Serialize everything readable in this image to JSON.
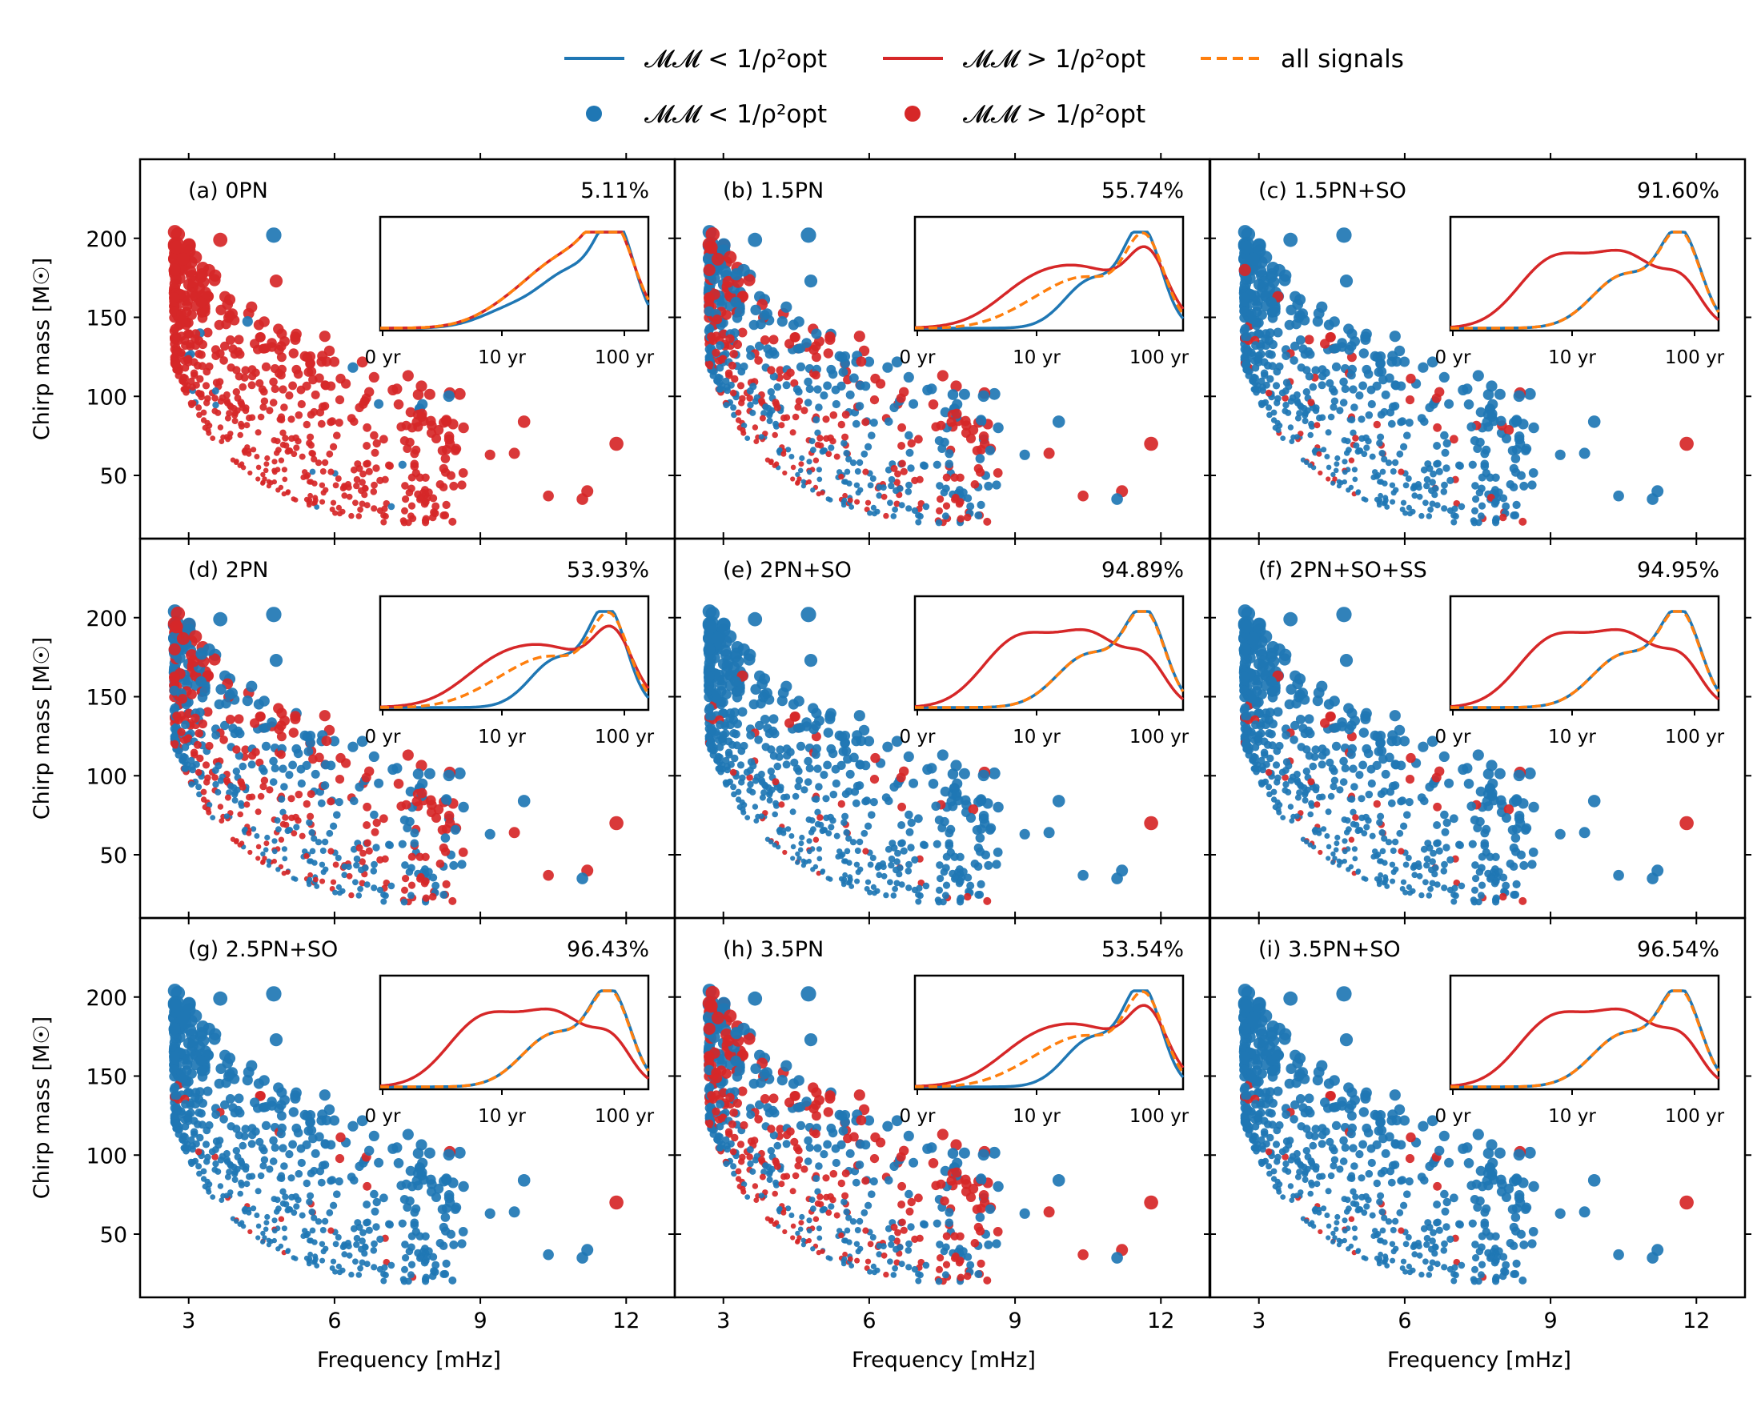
{
  "colors": {
    "blue": "#1f77b4",
    "red": "#d62728",
    "orange": "#ff7f0e",
    "axis": "#000000"
  },
  "legend": {
    "lines": [
      {
        "name": "below",
        "color": "#1f77b4",
        "style": "solid",
        "label": "𝓜𝓜 < 1/ρ²opt"
      },
      {
        "name": "above",
        "color": "#d62728",
        "style": "solid",
        "label": "𝓜𝓜 > 1/ρ²opt"
      },
      {
        "name": "all",
        "color": "#ff7f0e",
        "style": "dashed",
        "label": "all signals"
      }
    ],
    "markers": [
      {
        "name": "below",
        "color": "#1f77b4",
        "label": "𝓜𝓜 < 1/ρ²opt"
      },
      {
        "name": "above",
        "color": "#d62728",
        "label": "𝓜𝓜 > 1/ρ²opt"
      }
    ]
  },
  "chart_data": {
    "type": "scatter",
    "xlabel": "Frequency [mHz]",
    "ylabel": "Chirp mass [M☉]",
    "xlim": [
      2.0,
      13.0
    ],
    "ylim": [
      10,
      250
    ],
    "xticks": [
      3,
      6,
      9,
      12
    ],
    "yticks": [
      50,
      100,
      150,
      200
    ],
    "inset": {
      "xticks": [
        "0 yr",
        "10 yr",
        "100 yr"
      ]
    },
    "panels": [
      {
        "label": "(a) 0PN",
        "percent": "5.11%",
        "blue_fraction": 0.02,
        "curves": "a"
      },
      {
        "label": "(b) 1.5PN",
        "percent": "55.74%",
        "blue_fraction": 0.56,
        "curves": "b"
      },
      {
        "label": "(c) 1.5PN+SO",
        "percent": "91.60%",
        "blue_fraction": 0.9,
        "curves": "c"
      },
      {
        "label": "(d) 2PN",
        "percent": "53.93%",
        "blue_fraction": 0.54,
        "curves": "b"
      },
      {
        "label": "(e) 2PN+SO",
        "percent": "94.89%",
        "blue_fraction": 0.93,
        "curves": "c"
      },
      {
        "label": "(f) 2PN+SO+SS",
        "percent": "94.95%",
        "blue_fraction": 0.93,
        "curves": "c"
      },
      {
        "label": "(g) 2.5PN+SO",
        "percent": "96.43%",
        "blue_fraction": 0.95,
        "curves": "c"
      },
      {
        "label": "(h) 3.5PN",
        "percent": "53.54%",
        "blue_fraction": 0.53,
        "curves": "b"
      },
      {
        "label": "(i) 3.5PN+SO",
        "percent": "96.54%",
        "blue_fraction": 0.95,
        "curves": "c"
      }
    ],
    "highlighted_points": [
      {
        "f": 4.75,
        "mc": 202
      },
      {
        "f": 3.65,
        "mc": 199
      },
      {
        "f": 4.8,
        "mc": 173
      },
      {
        "f": 5.8,
        "mc": 138
      },
      {
        "f": 7.2,
        "mc": 104
      },
      {
        "f": 7.8,
        "mc": 89
      },
      {
        "f": 8.3,
        "mc": 85
      },
      {
        "f": 9.9,
        "mc": 84
      },
      {
        "f": 11.8,
        "mc": 70
      },
      {
        "f": 9.7,
        "mc": 64
      },
      {
        "f": 11.2,
        "mc": 40
      },
      {
        "f": 10.4,
        "mc": 37
      },
      {
        "f": 11.1,
        "mc": 35
      },
      {
        "f": 9.2,
        "mc": 63
      }
    ]
  }
}
